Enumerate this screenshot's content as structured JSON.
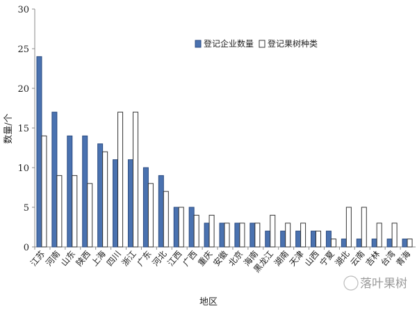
{
  "chart_data": {
    "type": "bar",
    "title": "",
    "xlabel": "地区",
    "ylabel": "数量/个",
    "ylim": [
      0,
      30
    ],
    "yticks": [
      0,
      5,
      10,
      15,
      20,
      25,
      30
    ],
    "grid": false,
    "legend_position": "top-right",
    "categories": [
      "江苏",
      "河南",
      "山东",
      "陕西",
      "上海",
      "四川",
      "浙江",
      "广东",
      "河北",
      "江西",
      "广西",
      "重庆",
      "安徽",
      "北京",
      "海南",
      "黑龙江",
      "湖南",
      "天津",
      "山西",
      "宁夏",
      "湖北",
      "云南",
      "吉林",
      "台湾",
      "青海"
    ],
    "series": [
      {
        "name": "登记企业数量",
        "color": "#4a72b0",
        "values": [
          24,
          17,
          14,
          14,
          13,
          11,
          11,
          10,
          9,
          5,
          5,
          3,
          3,
          3,
          3,
          2,
          2,
          2,
          2,
          2,
          1,
          1,
          1,
          1,
          1
        ]
      },
      {
        "name": "登记果树种类",
        "color": "#ffffff",
        "values": [
          14,
          9,
          9,
          8,
          12,
          17,
          17,
          8,
          7,
          5,
          4,
          4,
          3,
          3,
          3,
          4,
          3,
          3,
          2,
          1,
          5,
          5,
          3,
          3,
          1
        ]
      }
    ]
  },
  "watermark": "落叶果树"
}
